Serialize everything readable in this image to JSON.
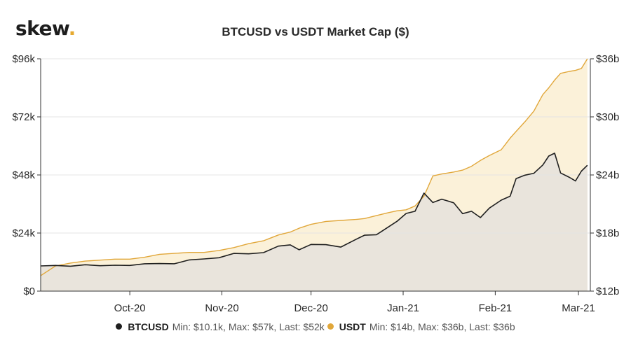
{
  "brand": {
    "name": "skew",
    "dot": "."
  },
  "chart_data": {
    "type": "line",
    "title": "BTCUSD vs USDT Market Cap ($)",
    "x_start": "2020-09-01",
    "x_end": "2021-03-05",
    "x_tick_labels": [
      "Oct-20",
      "Nov-20",
      "Dec-20",
      "Jan-21",
      "Feb-21",
      "Mar-21"
    ],
    "x_ticks": [
      "2020-10-01",
      "2020-11-01",
      "2020-12-01",
      "2021-01-01",
      "2021-02-01",
      "2021-03-01"
    ],
    "y_left": {
      "ticks": [
        0,
        24000,
        48000,
        72000,
        96000
      ],
      "tick_labels": [
        "$0",
        "$24k",
        "$48k",
        "$72k",
        "$96k"
      ],
      "ylim": [
        0,
        96000
      ]
    },
    "y_right": {
      "ticks": [
        12,
        18,
        24,
        30,
        36
      ],
      "tick_labels": [
        "$12b",
        "$18b",
        "$24b",
        "$30b",
        "$36b"
      ],
      "ylim": [
        12,
        36
      ]
    },
    "series": [
      {
        "name": "BTCUSD",
        "axis": "left",
        "color": "#1f1f1f",
        "fill": "#e9e4dc",
        "legend_stats": "Min: $10.1k, Max: $57k, Last: $52k",
        "x": [
          "2020-09-01",
          "2020-09-06",
          "2020-09-11",
          "2020-09-16",
          "2020-09-21",
          "2020-09-26",
          "2020-10-01",
          "2020-10-06",
          "2020-10-11",
          "2020-10-16",
          "2020-10-21",
          "2020-10-26",
          "2020-10-31",
          "2020-11-05",
          "2020-11-10",
          "2020-11-15",
          "2020-11-20",
          "2020-11-24",
          "2020-11-27",
          "2020-12-01",
          "2020-12-06",
          "2020-12-11",
          "2020-12-16",
          "2020-12-19",
          "2020-12-23",
          "2020-12-27",
          "2020-12-30",
          "2021-01-02",
          "2021-01-05",
          "2021-01-08",
          "2021-01-11",
          "2021-01-14",
          "2021-01-18",
          "2021-01-21",
          "2021-01-24",
          "2021-01-27",
          "2021-01-30",
          "2021-02-03",
          "2021-02-06",
          "2021-02-08",
          "2021-02-11",
          "2021-02-14",
          "2021-02-17",
          "2021-02-19",
          "2021-02-21",
          "2021-02-23",
          "2021-02-26",
          "2021-02-28",
          "2021-03-02",
          "2021-03-04"
        ],
        "y": [
          10400,
          10600,
          10300,
          10900,
          10500,
          10700,
          10600,
          11300,
          11400,
          11300,
          12900,
          13300,
          13800,
          15600,
          15400,
          15900,
          18600,
          19100,
          17100,
          19300,
          19200,
          18200,
          21300,
          23100,
          23300,
          26500,
          28900,
          32100,
          33000,
          40500,
          36600,
          38000,
          36500,
          32000,
          33000,
          30400,
          34300,
          37600,
          39200,
          46500,
          47900,
          48700,
          52100,
          55800,
          57000,
          48800,
          47000,
          45500,
          49600,
          52000
        ]
      },
      {
        "name": "USDT",
        "axis": "right",
        "color": "#e1a73a",
        "fill": "#fbf1d9",
        "legend_stats": "Min: $14b, Max: $36b, Last: $36b",
        "x": [
          "2020-09-01",
          "2020-09-06",
          "2020-09-11",
          "2020-09-16",
          "2020-09-21",
          "2020-09-26",
          "2020-10-01",
          "2020-10-06",
          "2020-10-11",
          "2020-10-16",
          "2020-10-21",
          "2020-10-26",
          "2020-10-31",
          "2020-11-05",
          "2020-11-10",
          "2020-11-15",
          "2020-11-20",
          "2020-11-24",
          "2020-11-27",
          "2020-12-01",
          "2020-12-06",
          "2020-12-11",
          "2020-12-16",
          "2020-12-19",
          "2020-12-23",
          "2020-12-27",
          "2020-12-30",
          "2021-01-02",
          "2021-01-05",
          "2021-01-08",
          "2021-01-11",
          "2021-01-14",
          "2021-01-18",
          "2021-01-21",
          "2021-01-24",
          "2021-01-27",
          "2021-01-30",
          "2021-02-03",
          "2021-02-06",
          "2021-02-08",
          "2021-02-11",
          "2021-02-14",
          "2021-02-17",
          "2021-02-19",
          "2021-02-21",
          "2021-02-23",
          "2021-02-26",
          "2021-02-28",
          "2021-03-02",
          "2021-03-04"
        ],
        "y": [
          13.6,
          14.6,
          14.9,
          15.1,
          15.2,
          15.3,
          15.3,
          15.5,
          15.8,
          15.9,
          16.0,
          16.0,
          16.2,
          16.5,
          16.9,
          17.2,
          17.8,
          18.1,
          18.5,
          18.9,
          19.2,
          19.3,
          19.4,
          19.5,
          19.8,
          20.1,
          20.3,
          20.4,
          20.8,
          21.8,
          23.9,
          24.1,
          24.3,
          24.5,
          24.9,
          25.5,
          26.0,
          26.6,
          27.8,
          28.5,
          29.5,
          30.6,
          32.3,
          33.0,
          33.8,
          34.5,
          34.7,
          34.8,
          35.0,
          36.0
        ]
      }
    ]
  }
}
